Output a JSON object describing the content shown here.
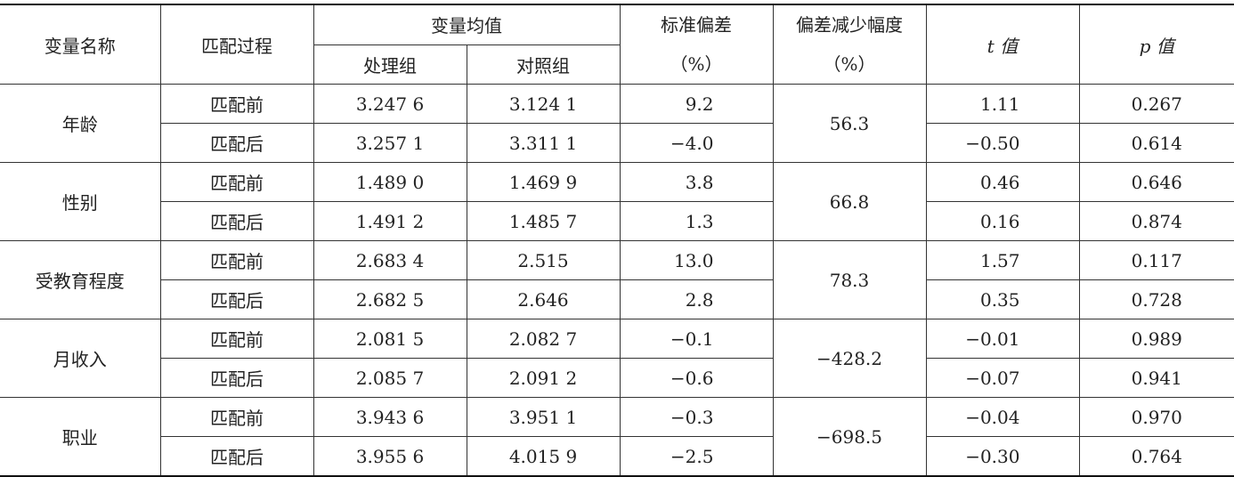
{
  "table": {
    "header": {
      "variable": "变量名称",
      "process": "匹配过程",
      "mean": "变量均值",
      "treated": "处理组",
      "control": "对照组",
      "std_bias": [
        "标准偏差",
        "（%）"
      ],
      "reduction": [
        "偏差减少幅度",
        "（%）"
      ],
      "t": "t 值",
      "p": "p 值"
    },
    "rows": [
      {
        "name": "年龄",
        "reduction": "56.3",
        "matches": [
          [
            "匹配前",
            "3.247 6",
            "3.124 1",
            "9.2",
            "1.11",
            "0.267"
          ],
          [
            "匹配后",
            "3.257 1",
            "3.311 1",
            "−4.0",
            "−0.50",
            "0.614"
          ]
        ]
      },
      {
        "name": "性别",
        "reduction": "66.8",
        "matches": [
          [
            "匹配前",
            "1.489 0",
            "1.469 9",
            "3.8",
            "0.46",
            "0.646"
          ],
          [
            "匹配后",
            "1.491 2",
            "1.485 7",
            "1.3",
            "0.16",
            "0.874"
          ]
        ]
      },
      {
        "name": "受教育程度",
        "reduction": "78.3",
        "matches": [
          [
            "匹配前",
            "2.683 4",
            "2.515",
            "13.0",
            "1.57",
            "0.117"
          ],
          [
            "匹配后",
            "2.682 5",
            "2.646",
            "2.8",
            "0.35",
            "0.728"
          ]
        ]
      },
      {
        "name": "月收入",
        "reduction": "−428.2",
        "matches": [
          [
            "匹配前",
            "2.081 5",
            "2.082 7",
            "−0.1",
            "−0.01",
            "0.989"
          ],
          [
            "匹配后",
            "2.085 7",
            "2.091 2",
            "−0.6",
            "−0.07",
            "0.941"
          ]
        ]
      },
      {
        "name": "职业",
        "reduction": "−698.5",
        "matches": [
          [
            "匹配前",
            "3.943 6",
            "3.951 1",
            "−0.3",
            "−0.04",
            "0.970"
          ],
          [
            "匹配后",
            "3.955 6",
            "4.015 9",
            "−2.5",
            "−0.30",
            "0.764"
          ]
        ]
      }
    ]
  }
}
